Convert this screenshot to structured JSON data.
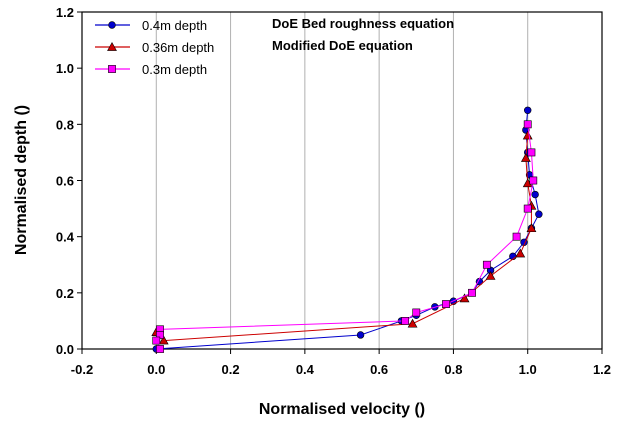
{
  "chart_data": {
    "type": "line",
    "xlabel": "Normalised velocity ()",
    "ylabel": "Normalised depth ()",
    "xlim": [
      -0.2,
      1.2
    ],
    "ylim": [
      0.0,
      1.2
    ],
    "x_ticks": [
      "-0.2",
      "0.0",
      "0.2",
      "0.4",
      "0.6",
      "0.8",
      "1.0",
      "1.2"
    ],
    "y_ticks": [
      "0.0",
      "0.2",
      "0.4",
      "0.6",
      "0.8",
      "1.0",
      "1.2"
    ],
    "x_tick_values": [
      -0.2,
      0.0,
      0.2,
      0.4,
      0.6,
      0.8,
      1.0,
      1.2
    ],
    "y_tick_values": [
      0.0,
      0.2,
      0.4,
      0.6,
      0.8,
      1.0,
      1.2
    ],
    "grid": "vertical",
    "legend_position": "top-left",
    "annotations": [
      "DoE Bed roughness equation",
      "Modified DoE equation"
    ],
    "series": [
      {
        "name": "0.4m depth",
        "color": "#0000cc",
        "marker": "circle",
        "points": [
          {
            "x": 1.0,
            "y": 0.85
          },
          {
            "x": 0.995,
            "y": 0.78
          },
          {
            "x": 1.0,
            "y": 0.7
          },
          {
            "x": 1.005,
            "y": 0.62
          },
          {
            "x": 1.02,
            "y": 0.55
          },
          {
            "x": 1.03,
            "y": 0.48
          },
          {
            "x": 1.01,
            "y": 0.43
          },
          {
            "x": 0.99,
            "y": 0.38
          },
          {
            "x": 0.96,
            "y": 0.33
          },
          {
            "x": 0.9,
            "y": 0.28
          },
          {
            "x": 0.87,
            "y": 0.24
          },
          {
            "x": 0.85,
            "y": 0.2
          },
          {
            "x": 0.8,
            "y": 0.17
          },
          {
            "x": 0.75,
            "y": 0.15
          },
          {
            "x": 0.7,
            "y": 0.12
          },
          {
            "x": 0.66,
            "y": 0.1
          },
          {
            "x": 0.55,
            "y": 0.05
          },
          {
            "x": 0.0,
            "y": 0.0
          }
        ]
      },
      {
        "name": "0.36m depth",
        "color": "#cc0000",
        "marker": "triangle",
        "points": [
          {
            "x": 1.0,
            "y": 0.76
          },
          {
            "x": 0.995,
            "y": 0.68
          },
          {
            "x": 1.0,
            "y": 0.59
          },
          {
            "x": 1.01,
            "y": 0.51
          },
          {
            "x": 1.01,
            "y": 0.43
          },
          {
            "x": 0.98,
            "y": 0.34
          },
          {
            "x": 0.9,
            "y": 0.26
          },
          {
            "x": 0.83,
            "y": 0.18
          },
          {
            "x": 0.69,
            "y": 0.09
          },
          {
            "x": 0.02,
            "y": 0.03
          },
          {
            "x": 0.0,
            "y": 0.06
          }
        ]
      },
      {
        "name": "0.3m depth",
        "color": "#ff00ff",
        "marker": "square",
        "points": [
          {
            "x": 1.0,
            "y": 0.8
          },
          {
            "x": 1.01,
            "y": 0.7
          },
          {
            "x": 1.015,
            "y": 0.6
          },
          {
            "x": 1.0,
            "y": 0.5
          },
          {
            "x": 0.97,
            "y": 0.4
          },
          {
            "x": 0.89,
            "y": 0.3
          },
          {
            "x": 0.85,
            "y": 0.2
          },
          {
            "x": 0.78,
            "y": 0.16
          },
          {
            "x": 0.7,
            "y": 0.13
          },
          {
            "x": 0.67,
            "y": 0.1
          },
          {
            "x": 0.01,
            "y": 0.07
          },
          {
            "x": 0.01,
            "y": 0.05
          },
          {
            "x": 0.0,
            "y": 0.03
          },
          {
            "x": 0.01,
            "y": 0.0
          }
        ]
      }
    ]
  }
}
